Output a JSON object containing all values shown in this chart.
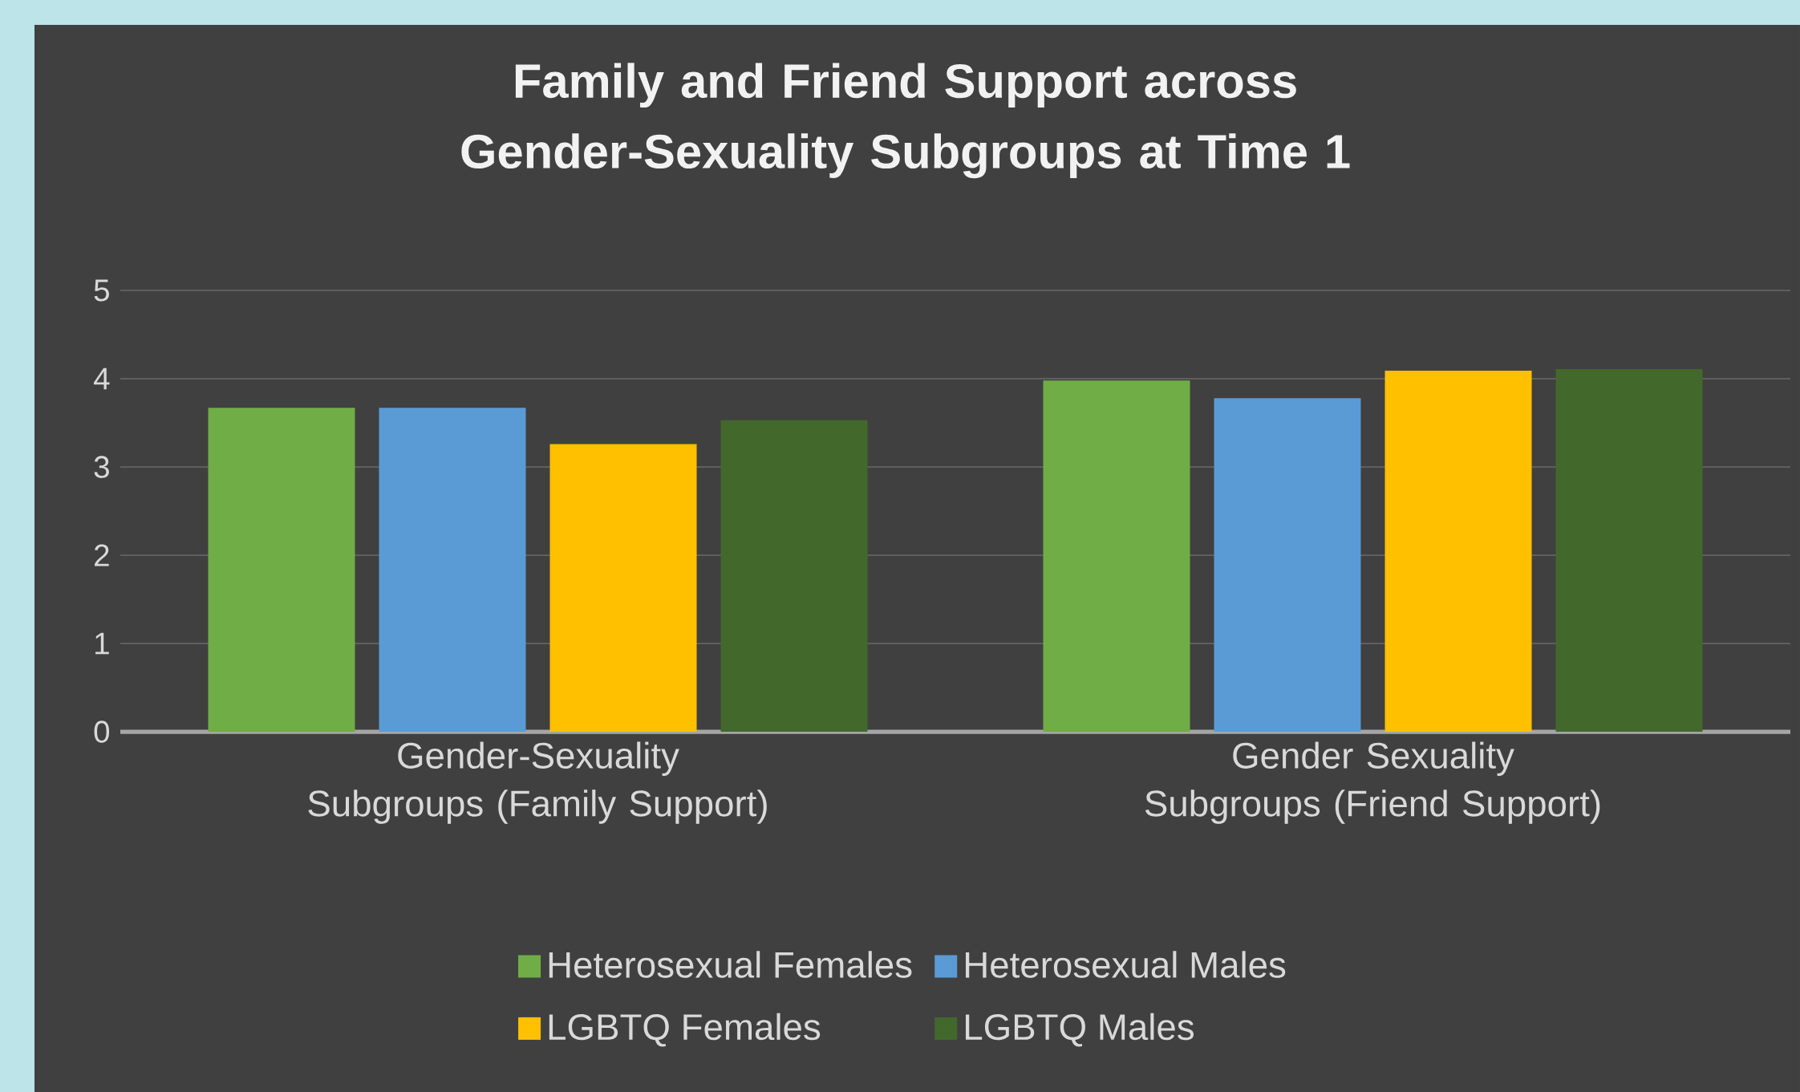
{
  "chart_data": {
    "type": "bar",
    "title": "Family and Friend Support across Gender-Sexuality Subgroups at Time 1",
    "categories": [
      "Gender-Sexuality Subgroups (Family Support)",
      "Gender Sexuality Subgroups (Friend Support)"
    ],
    "series": [
      {
        "name": "Heterosexual Females",
        "color": "#70ad47",
        "values": [
          3.67,
          3.98
        ]
      },
      {
        "name": "Heterosexual Males",
        "color": "#5b9bd5",
        "values": [
          3.67,
          3.78
        ]
      },
      {
        "name": "LGBTQ Females",
        "color": "#ffc000",
        "values": [
          3.26,
          4.09
        ]
      },
      {
        "name": "LGBTQ Males",
        "color": "#43682b",
        "values": [
          3.53,
          4.11
        ]
      }
    ],
    "ylim": [
      0,
      5
    ],
    "yticks": [
      0,
      1,
      2,
      3,
      4,
      5
    ],
    "grid": "y",
    "legend": "bottom"
  }
}
